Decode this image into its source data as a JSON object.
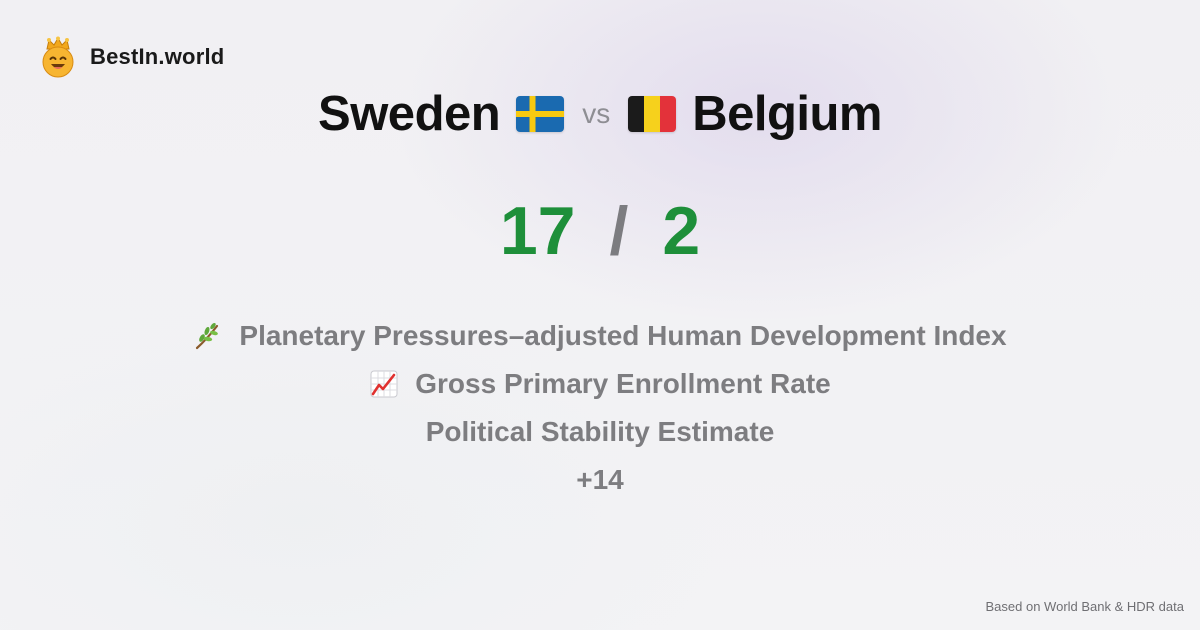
{
  "brand": {
    "name": "BestIn.world",
    "logo_icon": "crowned-smiley-icon"
  },
  "comparison": {
    "left": {
      "name": "Sweden",
      "flag_icon": "sweden-flag-icon"
    },
    "separator": "vs",
    "right": {
      "name": "Belgium",
      "flag_icon": "belgium-flag-icon"
    }
  },
  "score": {
    "left": "17",
    "separator": "/",
    "right": "2"
  },
  "reasons": [
    {
      "icon": "sprout-icon",
      "label": "Planetary Pressures–adjusted Human Development Index"
    },
    {
      "icon": "chart-increasing-icon",
      "label": "Gross Primary Enrollment Rate"
    },
    {
      "icon": "",
      "label": "Political Stability Estimate"
    }
  ],
  "more": "+14",
  "footer": "Based on World Bank & HDR data",
  "colors": {
    "score": "#1e8f3a",
    "muted": "#7d7d80",
    "title": "#111111"
  }
}
